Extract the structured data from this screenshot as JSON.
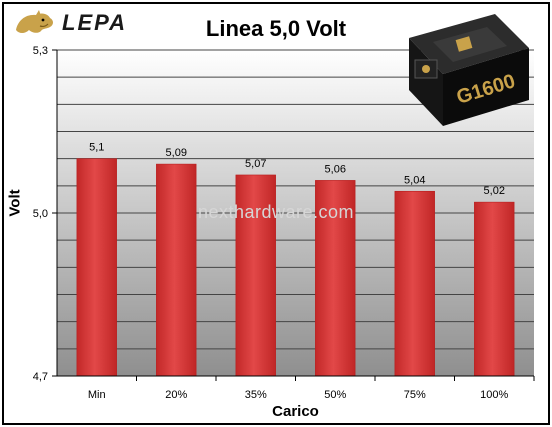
{
  "brand": {
    "logo_text": "LEPA"
  },
  "product": {
    "model_text": "G1600"
  },
  "watermark": "nexthardware.com",
  "colors": {
    "bar": "#d93a3a",
    "bar_edge": "#b81e1e",
    "grid": "#444444",
    "plot_bg_top": "#ffffff",
    "plot_bg_bottom": "#8f8f8f"
  },
  "chart_data": {
    "type": "bar",
    "title": "Linea 5,0 Volt",
    "xlabel": "Carico",
    "ylabel": "Volt",
    "categories": [
      "Min",
      "20%",
      "35%",
      "50%",
      "75%",
      "100%"
    ],
    "values": [
      5.1,
      5.09,
      5.07,
      5.06,
      5.04,
      5.02
    ],
    "value_labels": [
      "5,1",
      "5,09",
      "5,07",
      "5,06",
      "5,04",
      "5,02"
    ],
    "ylim": [
      4.7,
      5.3
    ],
    "yticks": [
      4.7,
      5.0,
      5.3
    ],
    "ytick_labels": [
      "4,7",
      "5,0",
      "5,3"
    ],
    "grid": true,
    "legend": "none"
  }
}
